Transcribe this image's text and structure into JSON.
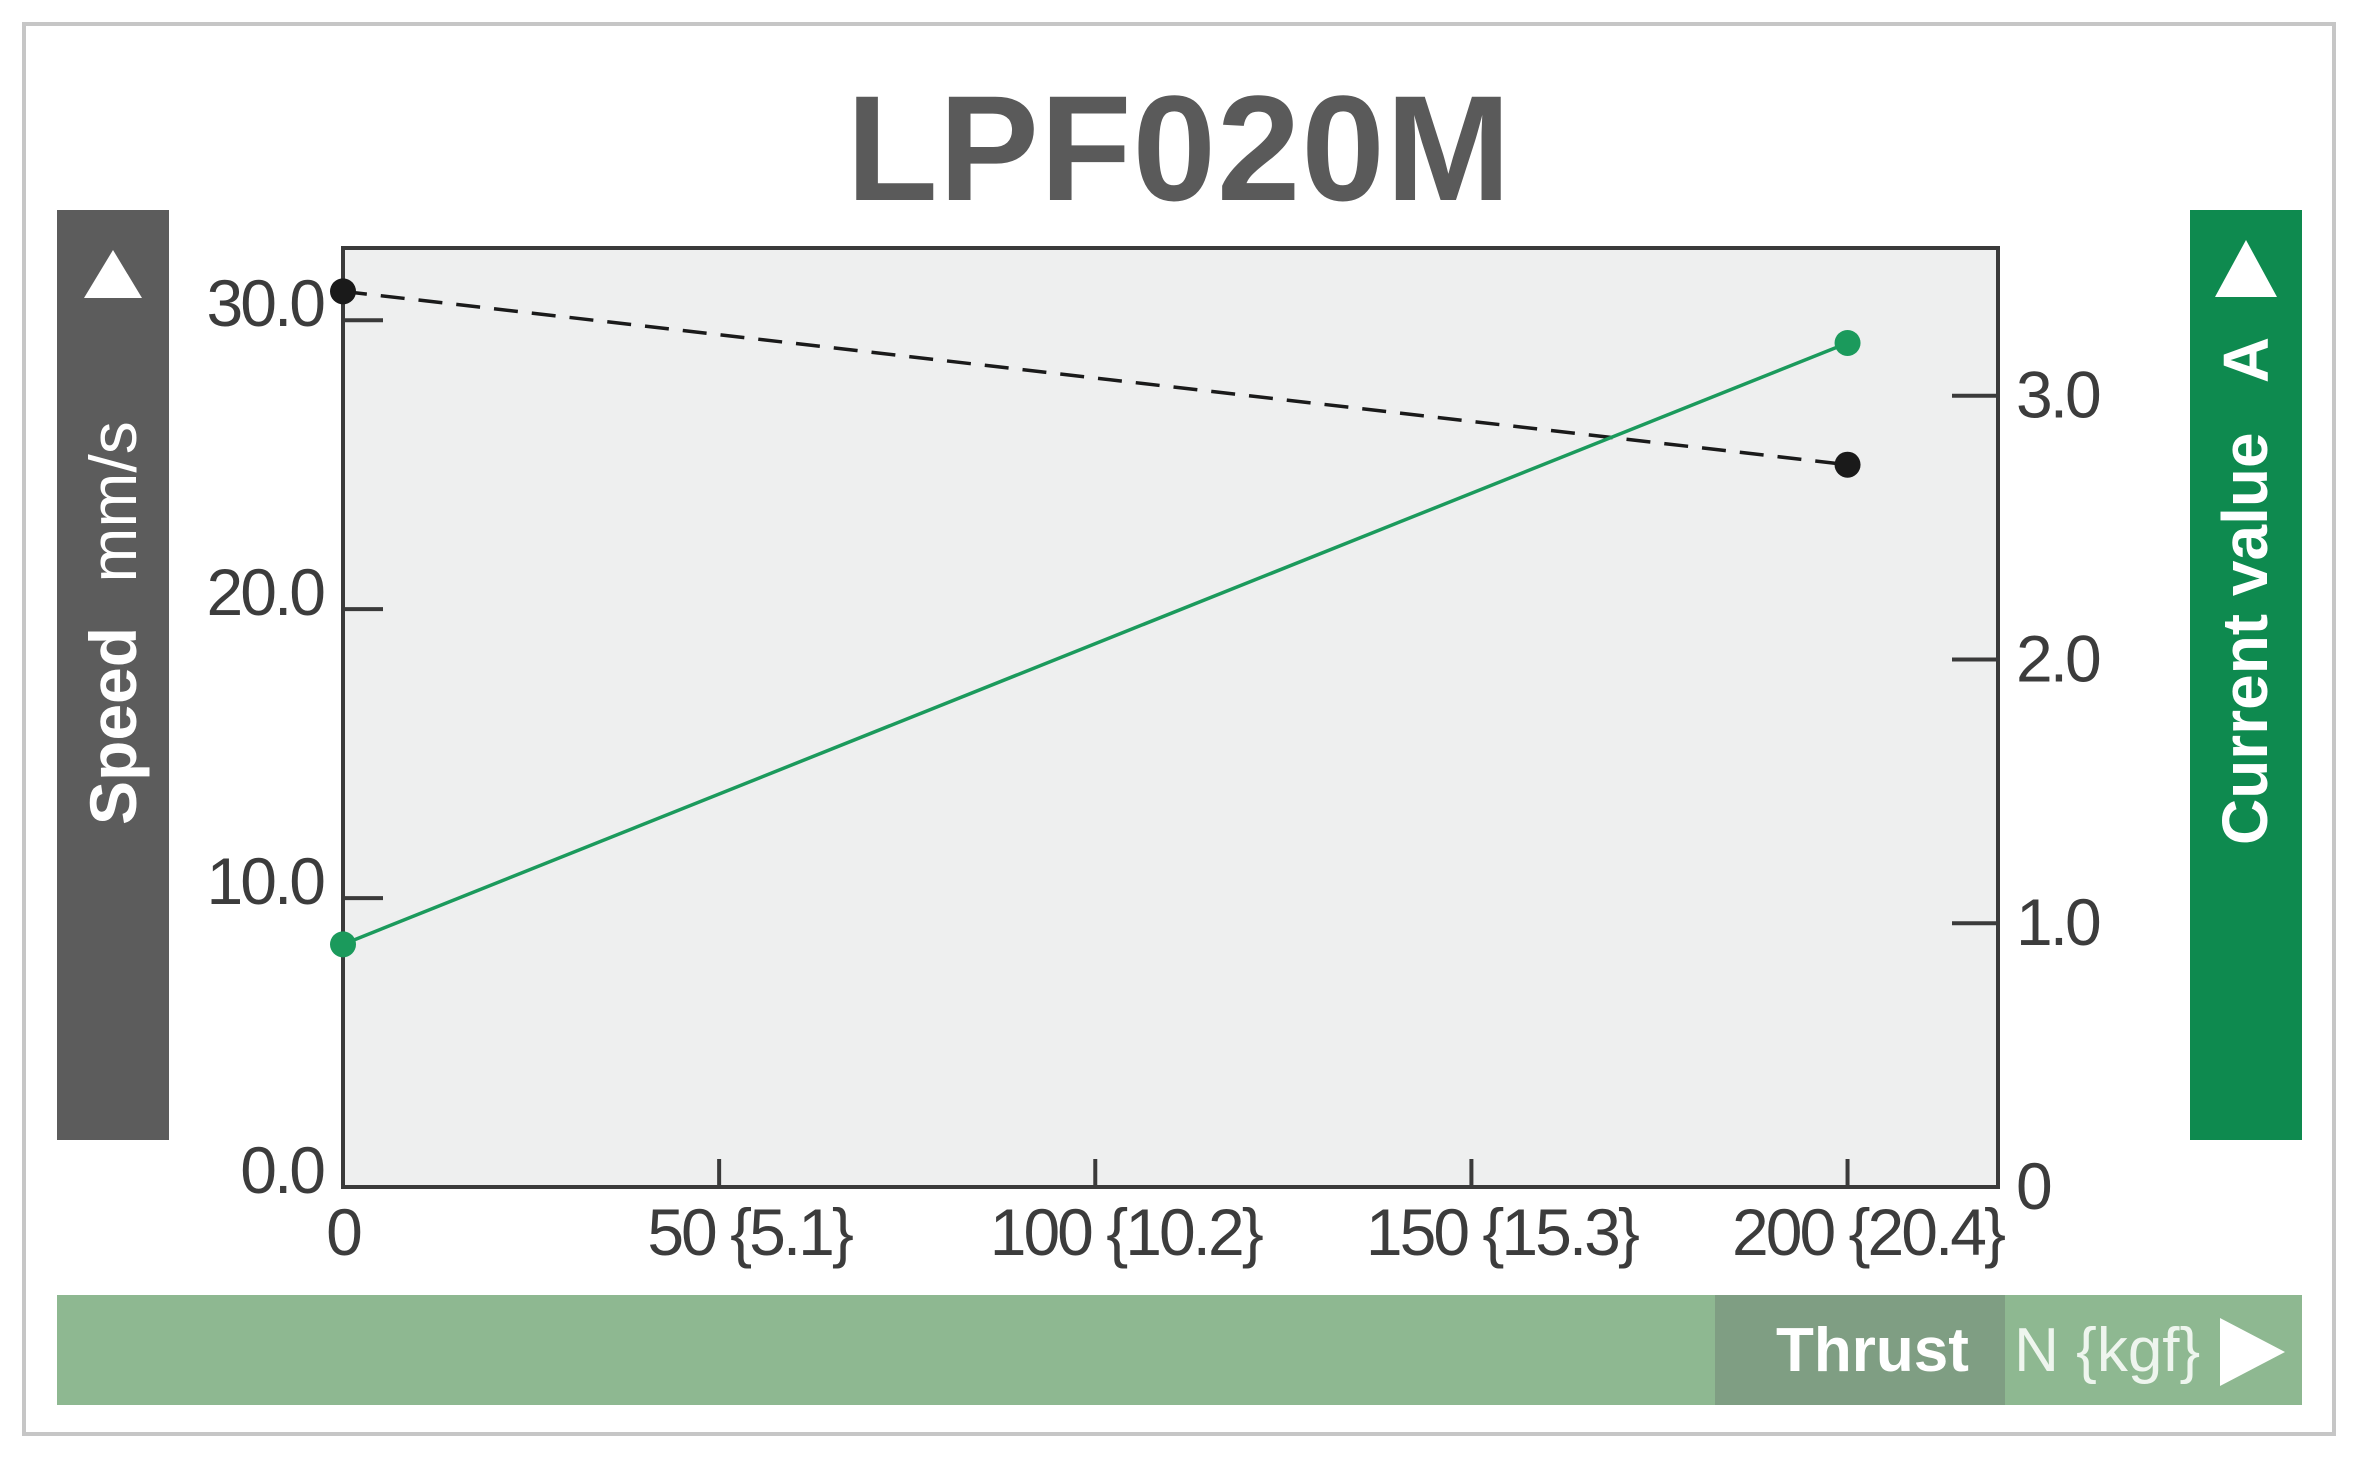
{
  "title": "LPF020M",
  "left_axis": {
    "name": "Speed",
    "unit": "mm/s"
  },
  "right_axis": {
    "name": "Current value",
    "unit": "A"
  },
  "x_axis": {
    "name": "Thrust",
    "unit": "N {kgf}"
  },
  "colors": {
    "speed": "#1a1a1a",
    "current": "#1b9a5c",
    "left_band": "#5c5c5c",
    "right_band": "#0e8a4f",
    "bottom_band": "#8eb891",
    "plot_bg": "#eeefef"
  },
  "chart_data": {
    "type": "line",
    "title": "LPF020M",
    "xlabel": "Thrust N {kgf}",
    "ylabel": "Speed mm/s",
    "y2label": "Current value A",
    "xlim": [
      0,
      220
    ],
    "ylim": [
      0,
      32.5
    ],
    "y2lim": [
      0,
      3.56
    ],
    "x_ticks": [
      {
        "value": 0,
        "label": "0"
      },
      {
        "value": 50,
        "label": "50 {5.1}"
      },
      {
        "value": 100,
        "label": "100 {10.2}"
      },
      {
        "value": 150,
        "label": "150 {15.3}"
      },
      {
        "value": 200,
        "label": "200 {20.4}"
      }
    ],
    "y_ticks": [
      {
        "value": 0,
        "label": "0.0"
      },
      {
        "value": 10,
        "label": "10.0"
      },
      {
        "value": 20,
        "label": "20.0"
      },
      {
        "value": 30,
        "label": "30.0"
      }
    ],
    "y2_ticks": [
      {
        "value": 0,
        "label": "0"
      },
      {
        "value": 1,
        "label": "1.0"
      },
      {
        "value": 2,
        "label": "2.0"
      },
      {
        "value": 3,
        "label": "3.0"
      }
    ],
    "series": [
      {
        "axis": "left",
        "style": "dashed",
        "color": "#1a1a1a",
        "x": [
          0,
          200
        ],
        "y": [
          31.0,
          25.0
        ]
      },
      {
        "axis": "right",
        "style": "solid",
        "color": "#1b9a5c",
        "x": [
          0,
          200
        ],
        "y": [
          0.92,
          3.2
        ]
      }
    ],
    "grid": false,
    "legend": "none"
  }
}
